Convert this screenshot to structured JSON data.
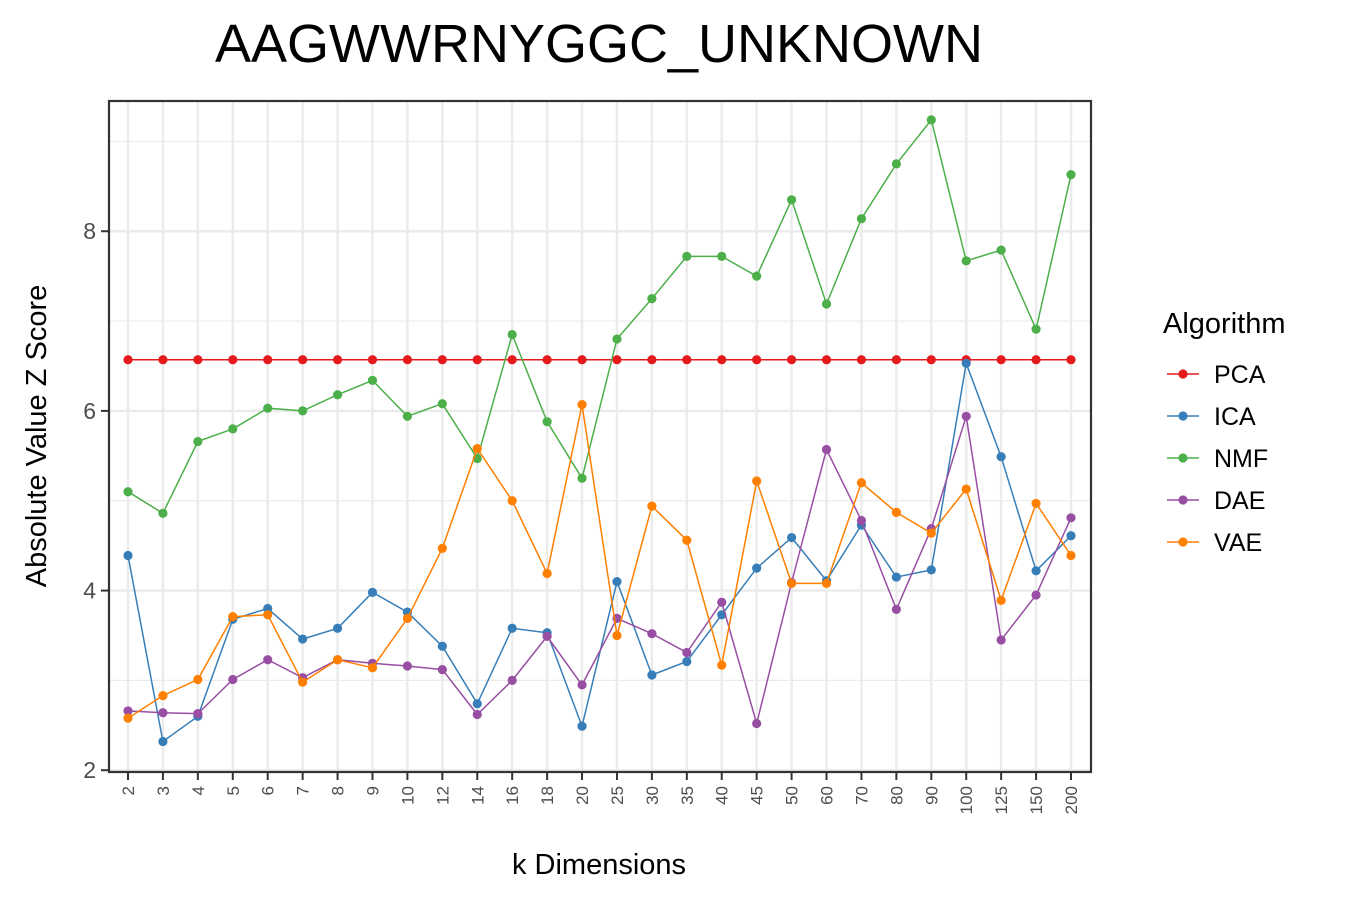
{
  "chart_data": {
    "type": "line",
    "title": "AAGWWRNYGGC_UNKNOWN",
    "xlabel": "k Dimensions",
    "ylabel": "Absolute Value Z Score",
    "categories": [
      "2",
      "3",
      "4",
      "5",
      "6",
      "7",
      "8",
      "9",
      "10",
      "12",
      "14",
      "16",
      "18",
      "20",
      "25",
      "30",
      "35",
      "40",
      "45",
      "50",
      "60",
      "70",
      "80",
      "90",
      "100",
      "125",
      "150",
      "200"
    ],
    "ylim": [
      1.98,
      9.45
    ],
    "yticks": [
      2,
      4,
      6,
      8
    ],
    "grid": true,
    "legend": {
      "title": "Algorithm",
      "placement": "right"
    },
    "series": [
      {
        "name": "PCA",
        "color": "#e41a1c",
        "values": [
          6.57,
          6.57,
          6.57,
          6.57,
          6.57,
          6.57,
          6.57,
          6.57,
          6.57,
          6.57,
          6.57,
          6.57,
          6.57,
          6.57,
          6.57,
          6.57,
          6.57,
          6.57,
          6.57,
          6.57,
          6.57,
          6.57,
          6.57,
          6.57,
          6.57,
          6.57,
          6.57,
          6.57
        ]
      },
      {
        "name": "ICA",
        "color": "#377eb8",
        "values": [
          4.39,
          2.32,
          2.6,
          3.68,
          3.8,
          3.46,
          3.58,
          3.98,
          3.76,
          3.38,
          2.74,
          3.58,
          3.53,
          2.49,
          4.1,
          3.06,
          3.21,
          3.73,
          4.25,
          4.59,
          4.11,
          4.73,
          4.15,
          4.23,
          6.53,
          5.49,
          4.22,
          4.61
        ]
      },
      {
        "name": "NMF",
        "color": "#4daf4a",
        "values": [
          5.1,
          4.86,
          5.66,
          5.8,
          6.03,
          6.0,
          6.18,
          6.34,
          5.94,
          6.08,
          5.47,
          6.85,
          5.88,
          5.25,
          6.8,
          7.25,
          7.72,
          7.72,
          7.5,
          8.35,
          7.19,
          8.14,
          8.75,
          9.24,
          7.67,
          7.79,
          6.91,
          8.63
        ]
      },
      {
        "name": "DAE",
        "color": "#984ea3",
        "values": [
          2.66,
          2.64,
          2.63,
          3.01,
          3.23,
          3.03,
          3.23,
          3.19,
          3.16,
          3.12,
          2.62,
          3.0,
          3.49,
          2.95,
          3.69,
          3.52,
          3.31,
          3.87,
          2.52,
          4.09,
          5.57,
          4.78,
          3.79,
          4.69,
          5.94,
          3.45,
          3.95,
          4.81
        ]
      },
      {
        "name": "VAE",
        "color": "#ff7f00",
        "values": [
          2.58,
          2.83,
          3.01,
          3.71,
          3.73,
          2.98,
          3.23,
          3.14,
          3.69,
          4.47,
          5.58,
          5.0,
          4.19,
          6.07,
          3.5,
          4.94,
          4.56,
          3.17,
          5.22,
          4.08,
          4.08,
          5.2,
          4.87,
          4.64,
          5.13,
          3.89,
          4.97,
          4.39
        ]
      }
    ]
  }
}
